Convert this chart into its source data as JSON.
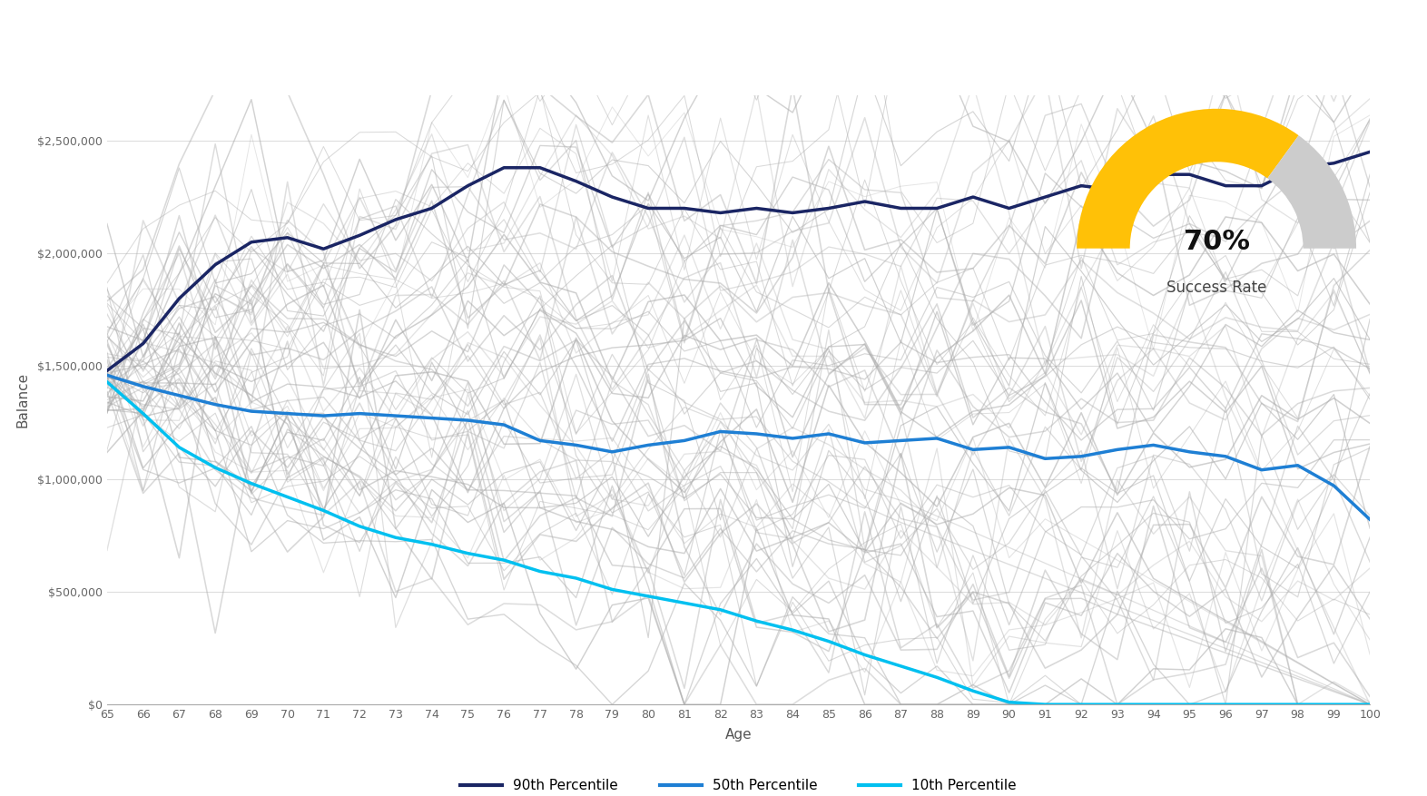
{
  "ages": [
    65,
    66,
    67,
    68,
    69,
    70,
    71,
    72,
    73,
    74,
    75,
    76,
    77,
    78,
    79,
    80,
    81,
    82,
    83,
    84,
    85,
    86,
    87,
    88,
    89,
    90,
    91,
    92,
    93,
    94,
    95,
    96,
    97,
    98,
    99,
    100
  ],
  "percentile_90": [
    1480000,
    1600000,
    1800000,
    1950000,
    2050000,
    2070000,
    2020000,
    2080000,
    2150000,
    2200000,
    2300000,
    2380000,
    2380000,
    2320000,
    2250000,
    2200000,
    2200000,
    2180000,
    2200000,
    2180000,
    2200000,
    2230000,
    2200000,
    2200000,
    2250000,
    2200000,
    2250000,
    2300000,
    2280000,
    2350000,
    2350000,
    2300000,
    2300000,
    2380000,
    2400000,
    2450000
  ],
  "percentile_50": [
    1460000,
    1410000,
    1370000,
    1330000,
    1300000,
    1290000,
    1280000,
    1290000,
    1280000,
    1270000,
    1260000,
    1240000,
    1170000,
    1150000,
    1120000,
    1150000,
    1170000,
    1210000,
    1200000,
    1180000,
    1200000,
    1160000,
    1170000,
    1180000,
    1130000,
    1140000,
    1090000,
    1100000,
    1130000,
    1150000,
    1120000,
    1100000,
    1040000,
    1060000,
    970000,
    820000
  ],
  "percentile_10": [
    1430000,
    1290000,
    1140000,
    1050000,
    980000,
    920000,
    860000,
    790000,
    740000,
    710000,
    670000,
    640000,
    590000,
    560000,
    510000,
    480000,
    450000,
    420000,
    370000,
    330000,
    280000,
    220000,
    170000,
    120000,
    60000,
    10000,
    0,
    0,
    0,
    0,
    0,
    0,
    0,
    0,
    0,
    0
  ],
  "success_rate": 70,
  "gauge_color_filled": "#FFC107",
  "gauge_color_empty": "#CCCCCC",
  "color_90th": "#1a2564",
  "color_50th": "#1e7fd4",
  "color_10th": "#00c0f0",
  "color_gray_lines": "#AAAAAA",
  "background_color": "#FFFFFF",
  "ylabel": "Balance",
  "xlabel": "Age",
  "ylim": [
    0,
    2700000
  ],
  "yticks": [
    0,
    500000,
    1000000,
    1500000,
    2000000,
    2500000
  ],
  "ytick_labels": [
    "$0",
    "$500,000",
    "$1,000,000",
    "$1,500,000",
    "$2,000,000",
    "$2,500,000"
  ],
  "num_sim_lines": 60
}
